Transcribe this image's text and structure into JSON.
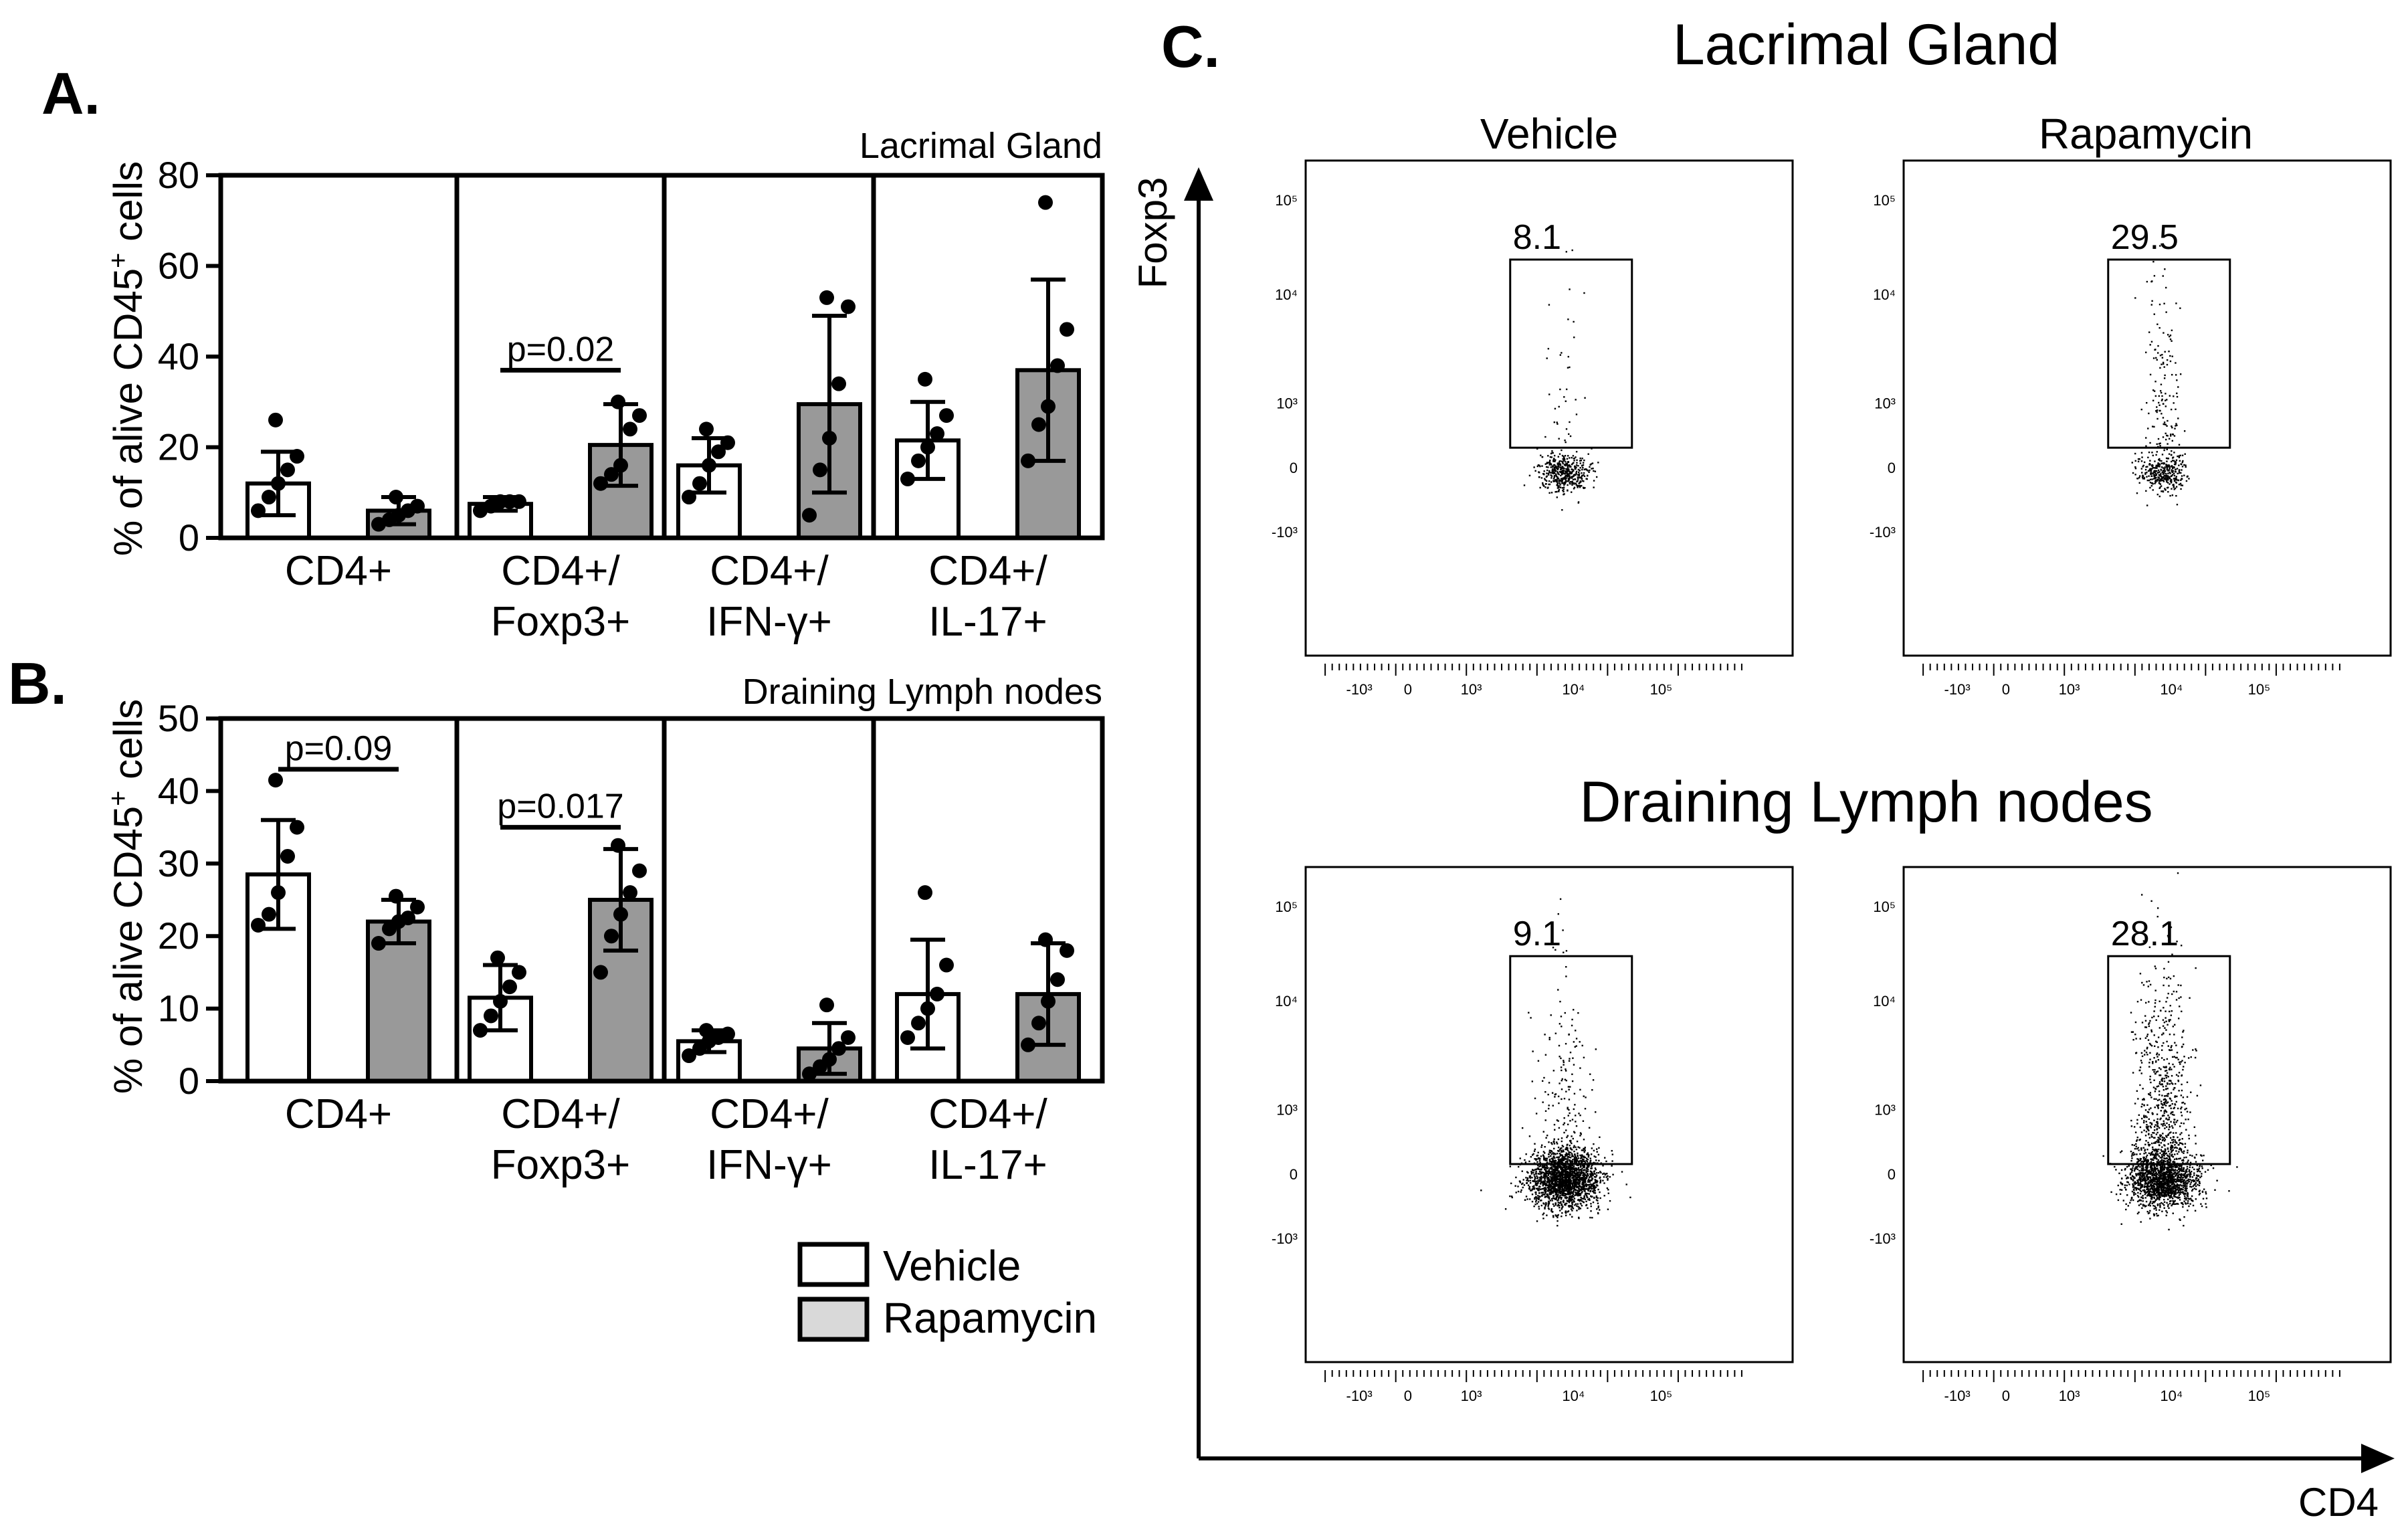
{
  "panels": {
    "a": "A.",
    "b": "B.",
    "c": "C."
  },
  "chart_data": [
    {
      "type": "bar",
      "id": "A",
      "title": "Lacrimal Gland",
      "ylabel": "% of alive CD45+ cells",
      "ylim": [
        0,
        80
      ],
      "yticks": [
        0,
        20,
        40,
        60,
        80
      ],
      "categories": [
        {
          "line1": "CD4+",
          "line2": ""
        },
        {
          "line1": "CD4+/",
          "line2": "Foxp3+"
        },
        {
          "line1": "CD4+/",
          "line2": "IFN-γ+"
        },
        {
          "line1": "CD4+/",
          "line2": "IL-17+"
        }
      ],
      "series": [
        {
          "name": "Vehicle",
          "color": "#ffffff",
          "values": [
            12,
            7.5,
            16,
            21.5
          ],
          "sd": [
            7,
            1.5,
            6,
            8.5
          ],
          "points": [
            [
              6,
              9,
              12,
              15,
              18,
              26
            ],
            [
              6,
              7,
              8,
              8,
              8,
              7.5
            ],
            [
              9,
              12,
              16,
              19,
              21,
              24
            ],
            [
              13,
              17,
              20,
              23,
              27,
              35
            ]
          ]
        },
        {
          "name": "Rapamycin",
          "color": "#999999",
          "values": [
            6,
            20.5,
            29.5,
            37
          ],
          "sd": [
            3,
            9,
            19.5,
            20
          ],
          "points": [
            [
              3,
              4,
              5,
              6,
              7,
              9
            ],
            [
              12,
              14,
              16,
              24,
              27,
              30
            ],
            [
              5,
              15,
              22,
              34,
              51,
              53
            ],
            [
              17,
              25,
              29,
              38,
              46,
              74
            ]
          ]
        }
      ],
      "annotations": [
        {
          "text": "p=0.02",
          "group": 1,
          "y": 37
        }
      ]
    },
    {
      "type": "bar",
      "id": "B",
      "title": "Draining Lymph nodes",
      "ylabel": "% of alive CD45+ cells",
      "ylim": [
        0,
        50
      ],
      "yticks": [
        0,
        10,
        20,
        30,
        40,
        50
      ],
      "categories": [
        {
          "line1": "CD4+",
          "line2": ""
        },
        {
          "line1": "CD4+/",
          "line2": "Foxp3+"
        },
        {
          "line1": "CD4+/",
          "line2": "IFN-γ+"
        },
        {
          "line1": "CD4+/",
          "line2": "IL-17+"
        }
      ],
      "series": [
        {
          "name": "Vehicle",
          "color": "#ffffff",
          "values": [
            28.5,
            11.5,
            5.5,
            12
          ],
          "sd": [
            7.5,
            4.5,
            1.5,
            7.5
          ],
          "points": [
            [
              21.5,
              23,
              26,
              31,
              35,
              41.5
            ],
            [
              7,
              9,
              11,
              13,
              15,
              17
            ],
            [
              3.5,
              4.5,
              5.5,
              6,
              6.5,
              7
            ],
            [
              6,
              8,
              10,
              12,
              16,
              26
            ]
          ]
        },
        {
          "name": "Rapamycin",
          "color": "#999999",
          "values": [
            22,
            25,
            4.5,
            12
          ],
          "sd": [
            3,
            7,
            3.5,
            7
          ],
          "points": [
            [
              19,
              21,
              22,
              22.5,
              24,
              25.5
            ],
            [
              15,
              20,
              23,
              26,
              29,
              32.5
            ],
            [
              1,
              2,
              3,
              4.5,
              6,
              10.5
            ],
            [
              5,
              8,
              11,
              14,
              18,
              19.5
            ]
          ]
        }
      ],
      "annotations": [
        {
          "text": "p=0.09",
          "group": 0,
          "y": 43
        },
        {
          "text": "p=0.017",
          "group": 1,
          "y": 35
        }
      ]
    },
    {
      "type": "scatter",
      "id": "C",
      "kind": "flow-cytometry",
      "xlabel": "CD4",
      "ylabel": "Foxp3",
      "xticks": [
        "-10³",
        "0",
        "10³",
        "10⁴",
        "10⁵"
      ],
      "yticks": [
        "10⁵",
        "10⁴",
        "10³",
        "0",
        "-10³"
      ],
      "rows": [
        {
          "title": "Lacrimal Gland",
          "plots": [
            {
              "column": "Vehicle",
              "gate_pct": "8.1"
            },
            {
              "column": "Rapamycin",
              "gate_pct": "29.5"
            }
          ]
        },
        {
          "title": "Draining Lymph nodes",
          "plots": [
            {
              "column": "Vehicle",
              "gate_pct": "9.1"
            },
            {
              "column": "Rapamycin",
              "gate_pct": "28.1"
            }
          ]
        }
      ]
    }
  ],
  "legend": [
    {
      "label": "Vehicle",
      "color": "#ffffff"
    },
    {
      "label": "Rapamycin",
      "color": "#d9d9d9"
    }
  ]
}
